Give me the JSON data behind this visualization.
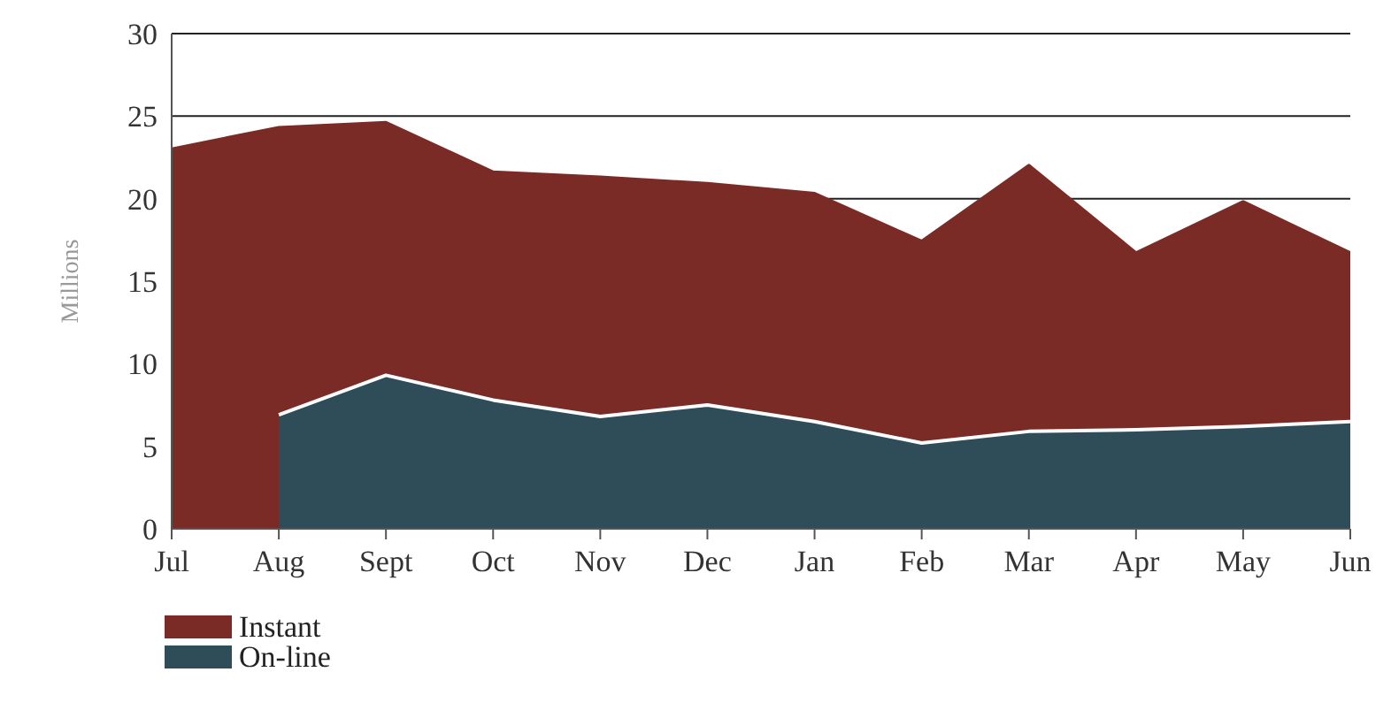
{
  "chart_data": {
    "type": "area",
    "ylabel": "Millions",
    "categories": [
      "Jul",
      "Aug",
      "Sept",
      "Oct",
      "Nov",
      "Dec",
      "Jan",
      "Feb",
      "Mar",
      "Apr",
      "May",
      "Jun"
    ],
    "series": [
      {
        "name": "Instant",
        "color": "#7b2b26",
        "values": [
          23,
          24.3,
          24.6,
          21.6,
          21.3,
          20.9,
          20.3,
          17.4,
          22,
          16.7,
          19.8,
          16.7
        ]
      },
      {
        "name": "On-line",
        "color": "#2f4d58",
        "values": [
          null,
          6.9,
          9.3,
          7.8,
          6.8,
          7.5,
          6.5,
          5.2,
          5.9,
          6,
          6.2,
          6.5
        ]
      }
    ],
    "ylim": [
      0,
      30
    ],
    "yticks": [
      0,
      5,
      10,
      15,
      20,
      25,
      30
    ],
    "grid": "y",
    "legend": "bottom left"
  }
}
